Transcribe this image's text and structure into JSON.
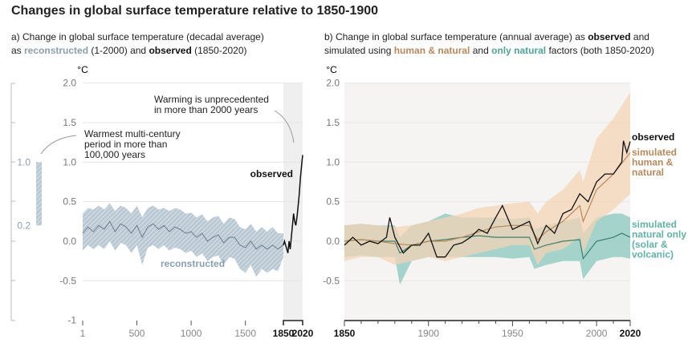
{
  "title": "Changes in global surface temperature relative to 1850-1900",
  "panel_a": {
    "line1": "a) Change in global surface temperature (decadal average)",
    "line2_pre": "as ",
    "reconstructed": "reconstructed",
    "line2_mid": " (1-2000) and ",
    "observed": "observed",
    "line2_post": " (1850-2020)"
  },
  "panel_b": {
    "line1_pre": "b) Change in global surface temperature (annual average) as ",
    "observed": "observed",
    "line1_post": " and",
    "line2_pre": "simulated using ",
    "human": "human & natural",
    "line2_mid": " and ",
    "natural": "only natural",
    "line2_post": " factors (both 1850-2020)"
  },
  "colors": {
    "reconstructed": "#9fb3c2",
    "reconstructed_line": "#6a7d8a",
    "observed": "#111111",
    "human_band": "#f3d4b6",
    "human_line": "#b8895a",
    "natural_band": "#8fcac1",
    "natural_line": "#3f7f6a",
    "recent_shade": "#efefef"
  },
  "chart_data": [
    {
      "type": "line",
      "unit": "°C",
      "ylim": [
        -1,
        2
      ],
      "yticks": [
        "2.0",
        "1.5",
        "1.0",
        "0.5",
        "0.0",
        "-0.5",
        "-1"
      ],
      "xticks": [
        "1",
        "500",
        "1000",
        "1500",
        "1850",
        "2020"
      ],
      "xlim": [
        1,
        2020
      ],
      "annotations": [
        "Warming is unprecedented",
        "in more than 2000 years",
        "Warmest multi-century",
        "period in more than",
        "100,000 years"
      ],
      "series": [
        {
          "name": "reconstructed",
          "x": [
            1,
            50,
            100,
            150,
            200,
            250,
            300,
            350,
            400,
            450,
            500,
            550,
            600,
            650,
            700,
            750,
            800,
            850,
            900,
            950,
            1000,
            1050,
            1100,
            1150,
            1200,
            1250,
            1300,
            1350,
            1400,
            1450,
            1500,
            1550,
            1600,
            1650,
            1700,
            1750,
            1800,
            1850
          ],
          "values": [
            0.1,
            0.18,
            0.12,
            0.2,
            0.15,
            0.25,
            0.12,
            0.22,
            0.18,
            0.1,
            0.2,
            0.05,
            0.18,
            0.22,
            0.15,
            0.2,
            0.12,
            0.18,
            0.15,
            0.1,
            0.12,
            0.05,
            0.1,
            0.0,
            0.05,
            0.08,
            -0.02,
            0.05,
            0.05,
            -0.05,
            -0.08,
            0.0,
            -0.1,
            -0.05,
            -0.1,
            -0.05,
            -0.1,
            -0.05
          ],
          "upper": [
            0.35,
            0.42,
            0.4,
            0.45,
            0.4,
            0.48,
            0.38,
            0.45,
            0.42,
            0.35,
            0.45,
            0.3,
            0.42,
            0.45,
            0.4,
            0.42,
            0.38,
            0.42,
            0.4,
            0.35,
            0.36,
            0.3,
            0.34,
            0.25,
            0.3,
            0.32,
            0.22,
            0.3,
            0.28,
            0.18,
            0.15,
            0.22,
            0.12,
            0.18,
            0.12,
            0.18,
            0.1,
            0.1
          ],
          "lower": [
            -0.12,
            -0.05,
            -0.1,
            -0.05,
            -0.1,
            0.0,
            -0.12,
            -0.02,
            -0.05,
            -0.15,
            -0.05,
            -0.3,
            -0.08,
            -0.05,
            -0.1,
            -0.05,
            -0.12,
            -0.08,
            -0.1,
            -0.15,
            -0.12,
            -0.2,
            -0.15,
            -0.25,
            -0.2,
            -0.18,
            -0.3,
            -0.2,
            -0.22,
            -0.35,
            -0.4,
            -0.3,
            -0.45,
            -0.35,
            -0.4,
            -0.35,
            -0.38,
            -0.2
          ]
        },
        {
          "name": "observed",
          "x": [
            1850,
            1860,
            1870,
            1880,
            1890,
            1900,
            1910,
            1920,
            1930,
            1940,
            1950,
            1960,
            1970,
            1980,
            1990,
            2000,
            2010,
            2020
          ],
          "values": [
            -0.05,
            0.0,
            -0.05,
            -0.1,
            -0.15,
            0.0,
            -0.1,
            0.05,
            0.2,
            0.35,
            0.25,
            0.2,
            0.3,
            0.45,
            0.6,
            0.8,
            0.95,
            1.09
          ]
        }
      ],
      "side_bar": {
        "range": [
          0.2,
          1.0
        ],
        "labels": [
          "1.0",
          "0.2"
        ]
      }
    },
    {
      "type": "line",
      "unit": "°C",
      "ylim": [
        -1,
        2
      ],
      "yticks": [
        "2.0",
        "1.5",
        "1.0",
        "0.5",
        "0.0",
        "-0.5"
      ],
      "xticks": [
        "1850",
        "1900",
        "1950",
        "2000",
        "2020"
      ],
      "xlim": [
        1850,
        2020
      ],
      "series": [
        {
          "name": "observed",
          "x": [
            1850,
            1855,
            1860,
            1865,
            1870,
            1875,
            1877,
            1880,
            1885,
            1890,
            1895,
            1900,
            1905,
            1910,
            1915,
            1920,
            1925,
            1930,
            1935,
            1940,
            1944,
            1950,
            1955,
            1960,
            1965,
            1970,
            1975,
            1980,
            1985,
            1990,
            1995,
            2000,
            2005,
            2010,
            2015,
            2016,
            2018,
            2020
          ],
          "values": [
            -0.05,
            0.05,
            -0.05,
            0.0,
            -0.03,
            0.05,
            0.3,
            0.05,
            -0.15,
            -0.05,
            -0.05,
            0.1,
            -0.2,
            -0.2,
            -0.05,
            -0.02,
            0.05,
            0.15,
            0.1,
            0.3,
            0.45,
            0.15,
            0.2,
            0.25,
            -0.03,
            0.2,
            0.1,
            0.35,
            0.4,
            0.6,
            0.5,
            0.75,
            0.85,
            0.85,
            1.0,
            1.27,
            1.12,
            1.26
          ]
        },
        {
          "name": "simulated human & natural",
          "x": [
            1850,
            1860,
            1870,
            1880,
            1890,
            1900,
            1910,
            1920,
            1930,
            1940,
            1950,
            1960,
            1965,
            1970,
            1980,
            1990,
            1992,
            2000,
            2010,
            2020
          ],
          "values": [
            0.0,
            0.02,
            0.0,
            -0.03,
            -0.05,
            0.0,
            0.0,
            0.05,
            0.12,
            0.18,
            0.2,
            0.2,
            0.02,
            0.12,
            0.25,
            0.45,
            0.25,
            0.65,
            0.85,
            1.12
          ],
          "upper": [
            0.2,
            0.22,
            0.2,
            0.18,
            0.2,
            0.25,
            0.3,
            0.35,
            0.42,
            0.45,
            0.48,
            0.5,
            0.35,
            0.5,
            0.65,
            0.9,
            0.75,
            1.3,
            1.55,
            1.88
          ],
          "lower": [
            -0.25,
            -0.2,
            -0.2,
            -0.3,
            -0.25,
            -0.2,
            -0.25,
            -0.2,
            -0.15,
            -0.1,
            -0.05,
            -0.05,
            -0.3,
            -0.15,
            -0.1,
            0.05,
            -0.15,
            0.25,
            0.4,
            0.6
          ]
        },
        {
          "name": "simulated natural only (solar & volcanic)",
          "x": [
            1850,
            1860,
            1870,
            1880,
            1883,
            1890,
            1900,
            1910,
            1920,
            1930,
            1940,
            1950,
            1960,
            1963,
            1970,
            1980,
            1990,
            1992,
            2000,
            2010,
            2015,
            2020
          ],
          "values": [
            0.0,
            0.02,
            0.0,
            0.0,
            -0.15,
            -0.05,
            0.0,
            0.02,
            0.05,
            0.07,
            0.05,
            0.05,
            0.05,
            -0.1,
            -0.05,
            0.0,
            0.02,
            -0.22,
            0.0,
            0.05,
            0.1,
            0.05
          ],
          "upper": [
            0.2,
            0.22,
            0.2,
            0.2,
            0.05,
            0.2,
            0.25,
            0.35,
            0.3,
            0.3,
            0.3,
            0.28,
            0.3,
            0.15,
            0.2,
            0.25,
            0.3,
            0.1,
            0.3,
            0.35,
            0.35,
            0.3
          ],
          "lower": [
            -0.2,
            -0.18,
            -0.2,
            -0.2,
            -0.55,
            -0.25,
            -0.2,
            -0.2,
            -0.2,
            -0.2,
            -0.2,
            -0.22,
            -0.2,
            -0.35,
            -0.3,
            -0.25,
            -0.25,
            -0.48,
            -0.25,
            -0.2,
            -0.2,
            -0.22
          ]
        }
      ],
      "labels": {
        "observed": "observed",
        "human": [
          "simulated",
          "human &",
          "natural"
        ],
        "natural": [
          "simulated",
          "natural only",
          "(solar &",
          "volcanic)"
        ]
      }
    }
  ]
}
